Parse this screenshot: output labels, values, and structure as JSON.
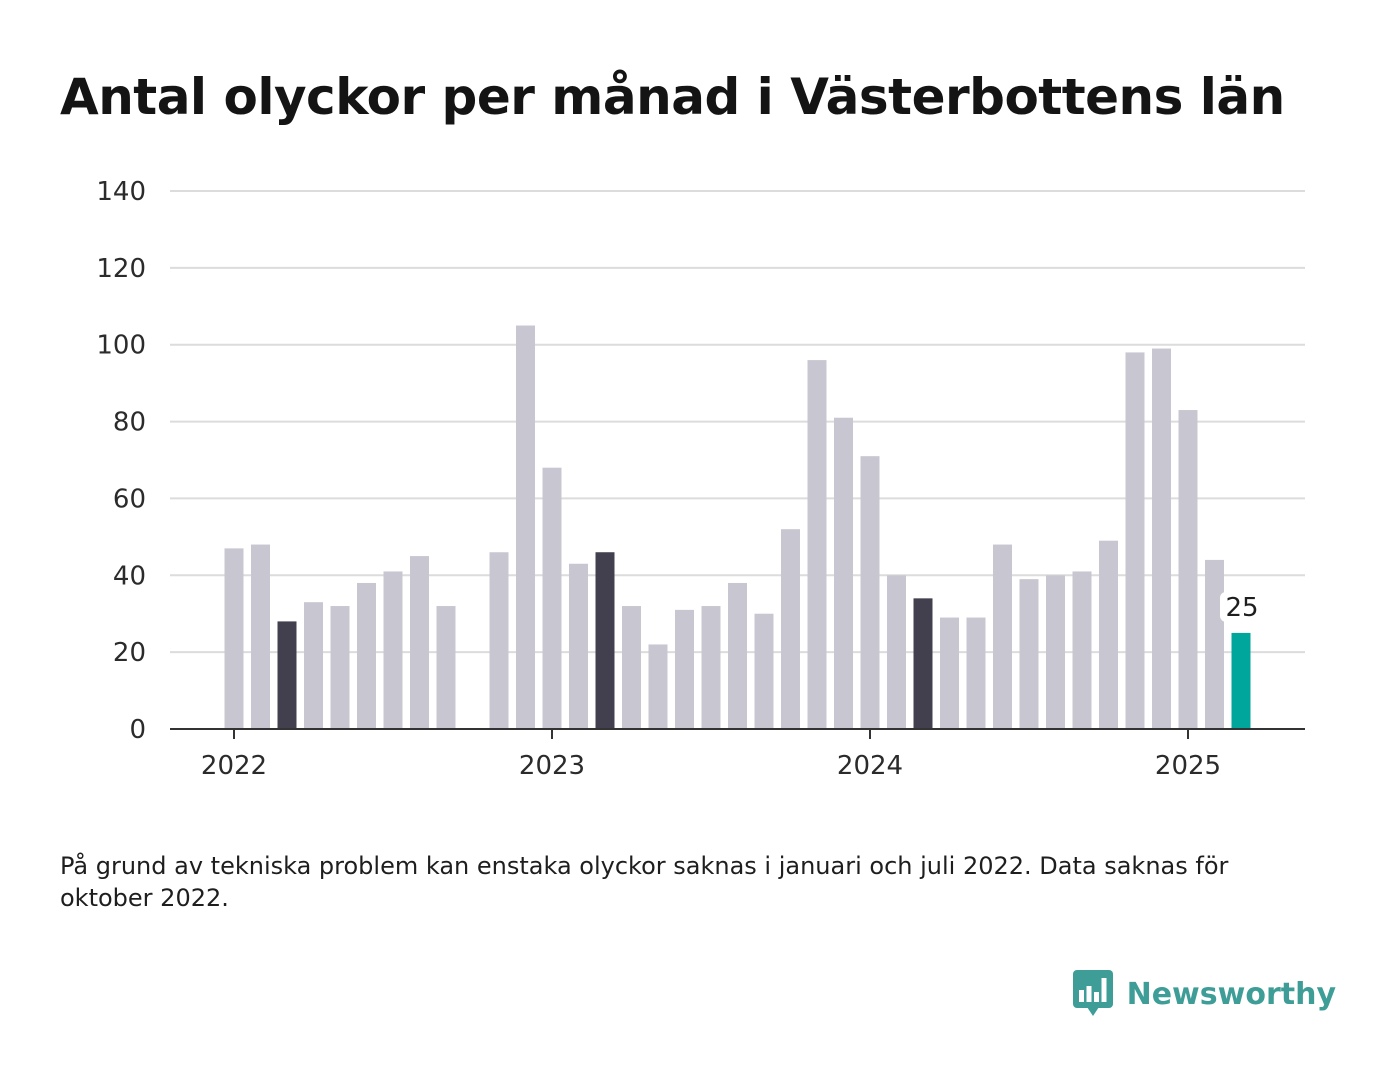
{
  "title": "Antal olyckor per månad i Västerbottens län",
  "footnote": "På grund av tekniska problem kan enstaka olyckor saknas i januari och juli 2022. Data saknas för oktober 2022.",
  "brand": {
    "name": "Newsworthy",
    "icon": "bar-chart-speech-bubble-icon",
    "color": "#3e9e97"
  },
  "colors": {
    "bar": "#c8c7d1",
    "highlight": "#42404e",
    "latest": "#00a69c",
    "grid": "#dcdcdc",
    "axis": "#333333"
  },
  "chart_data": {
    "type": "bar",
    "ylim": [
      0,
      140
    ],
    "yticks": [
      0,
      20,
      40,
      60,
      80,
      100,
      120,
      140
    ],
    "xticks": [
      "2022",
      "2023",
      "2024",
      "2025"
    ],
    "grid": true,
    "legend": "none",
    "x": [
      "2022-01",
      "2022-02",
      "2022-03",
      "2022-04",
      "2022-05",
      "2022-06",
      "2022-07",
      "2022-08",
      "2022-09",
      "2022-10",
      "2022-11",
      "2022-12",
      "2023-01",
      "2023-02",
      "2023-03",
      "2023-04",
      "2023-05",
      "2023-06",
      "2023-07",
      "2023-08",
      "2023-09",
      "2023-10",
      "2023-11",
      "2023-12",
      "2024-01",
      "2024-02",
      "2024-03",
      "2024-04",
      "2024-05",
      "2024-06",
      "2024-07",
      "2024-08",
      "2024-09",
      "2024-10",
      "2024-11",
      "2024-12",
      "2025-01",
      "2025-02",
      "2025-03"
    ],
    "values": [
      47,
      48,
      28,
      33,
      32,
      38,
      41,
      45,
      32,
      null,
      46,
      105,
      68,
      43,
      46,
      32,
      22,
      31,
      32,
      38,
      30,
      52,
      96,
      81,
      71,
      40,
      34,
      29,
      29,
      48,
      39,
      40,
      41,
      49,
      98,
      99,
      83,
      44,
      25
    ],
    "highlighted": [
      "2022-03",
      "2023-03",
      "2024-03"
    ],
    "latest": "2025-03",
    "data_labels": [
      {
        "x": "2025-03",
        "text": "25"
      }
    ]
  }
}
